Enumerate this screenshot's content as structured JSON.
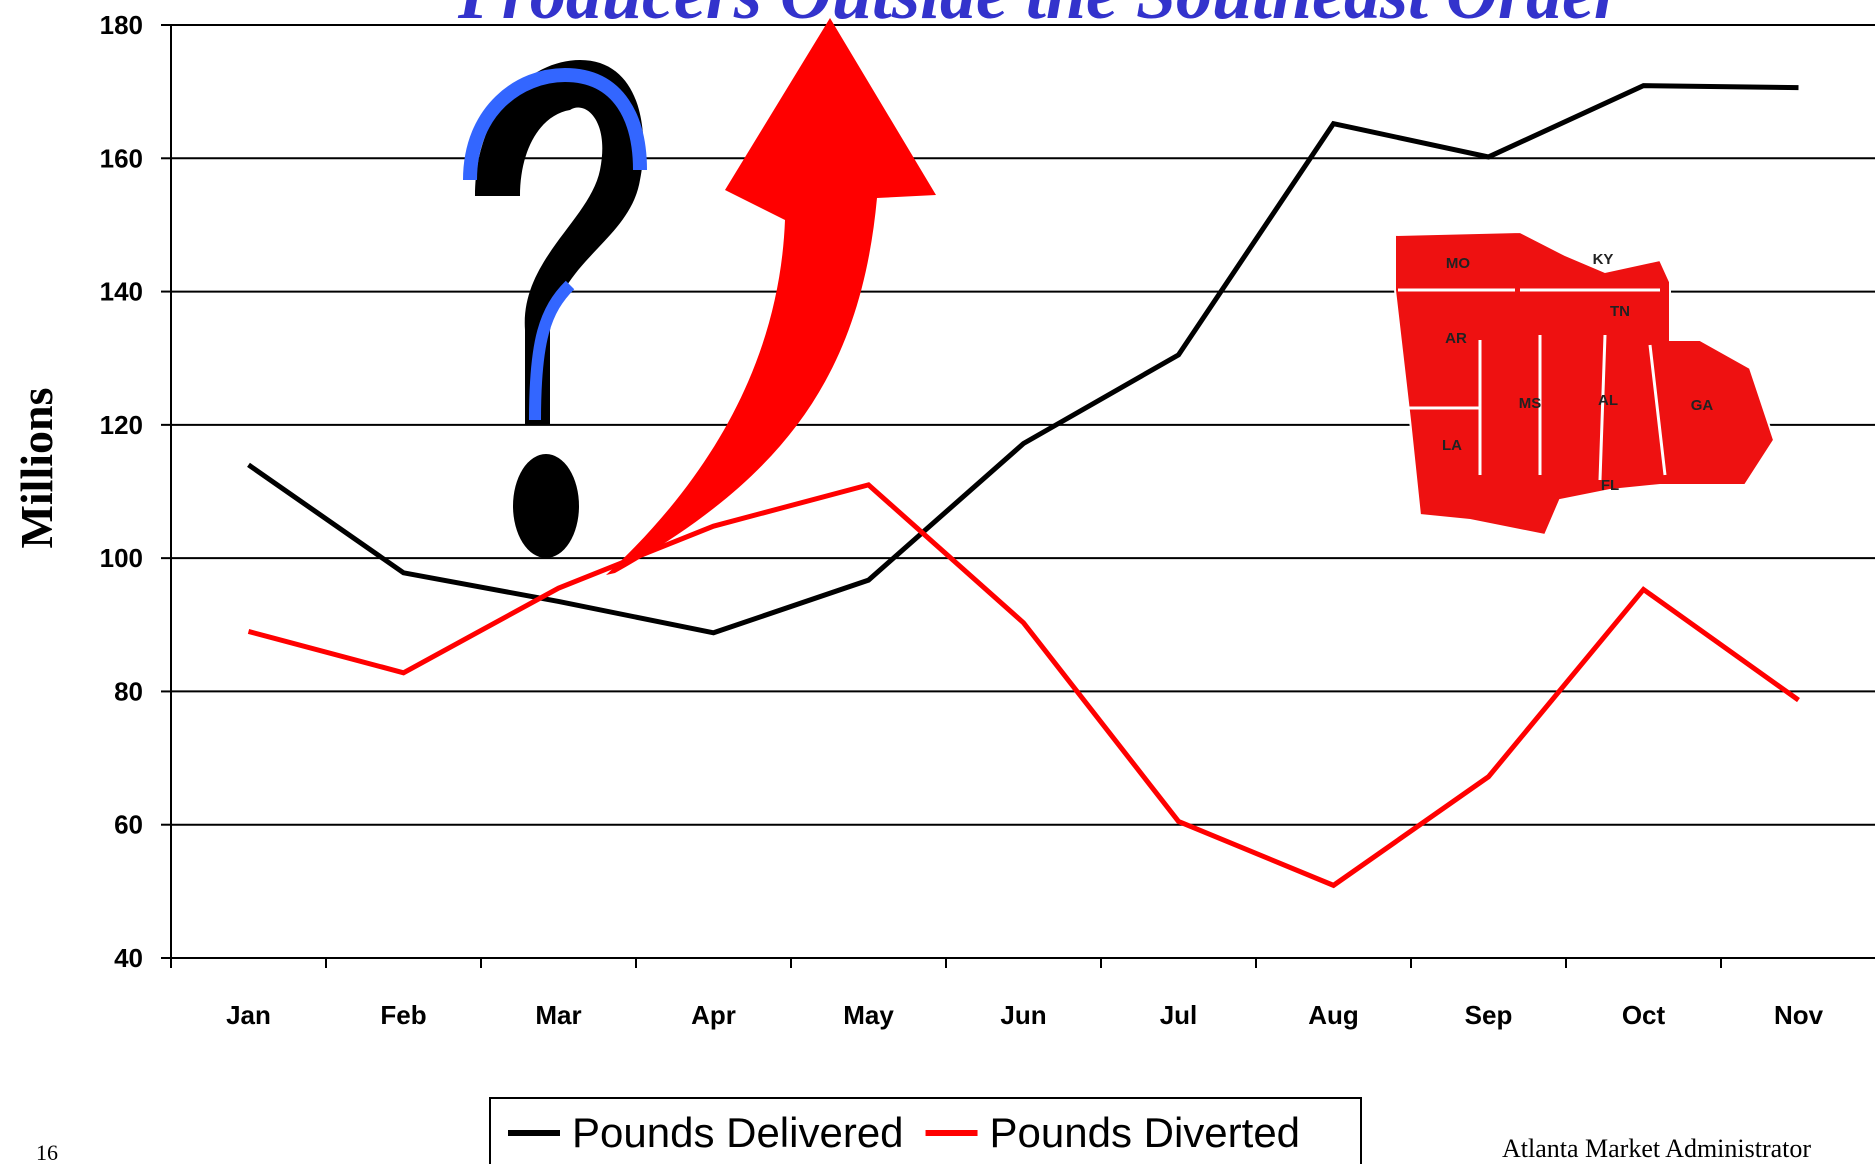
{
  "chart_data": {
    "type": "line",
    "title": "Producers Outside the Southeast Order",
    "y_label": "Millions",
    "categories": [
      "Jan",
      "Feb",
      "Mar",
      "Apr",
      "May",
      "Jun",
      "Jul",
      "Aug",
      "Sep",
      "Oct",
      "Nov"
    ],
    "series": [
      {
        "name": "Pounds Delivered",
        "color": "#000000",
        "values": [
          114,
          97.8,
          93.5,
          88.8,
          96.7,
          117.2,
          130.5,
          165.2,
          160.2,
          170.9,
          170.6
        ]
      },
      {
        "name": "Pounds Diverted",
        "color": "#ff0000",
        "values": [
          89,
          82.8,
          95.5,
          104.8,
          111,
          90.3,
          60.5,
          50.9,
          67.2,
          95.3,
          78.7
        ]
      }
    ],
    "ylim": [
      40,
      180
    ],
    "yticks": [
      40,
      60,
      80,
      100,
      120,
      140,
      160,
      180
    ],
    "grid": true,
    "legend": "bottom",
    "page_number": "16",
    "footer": "Atlanta Market Administrator",
    "map_labels": [
      "MO",
      "KY",
      "AR",
      "TN",
      "MS",
      "AL",
      "GA",
      "LA",
      "FL"
    ]
  }
}
